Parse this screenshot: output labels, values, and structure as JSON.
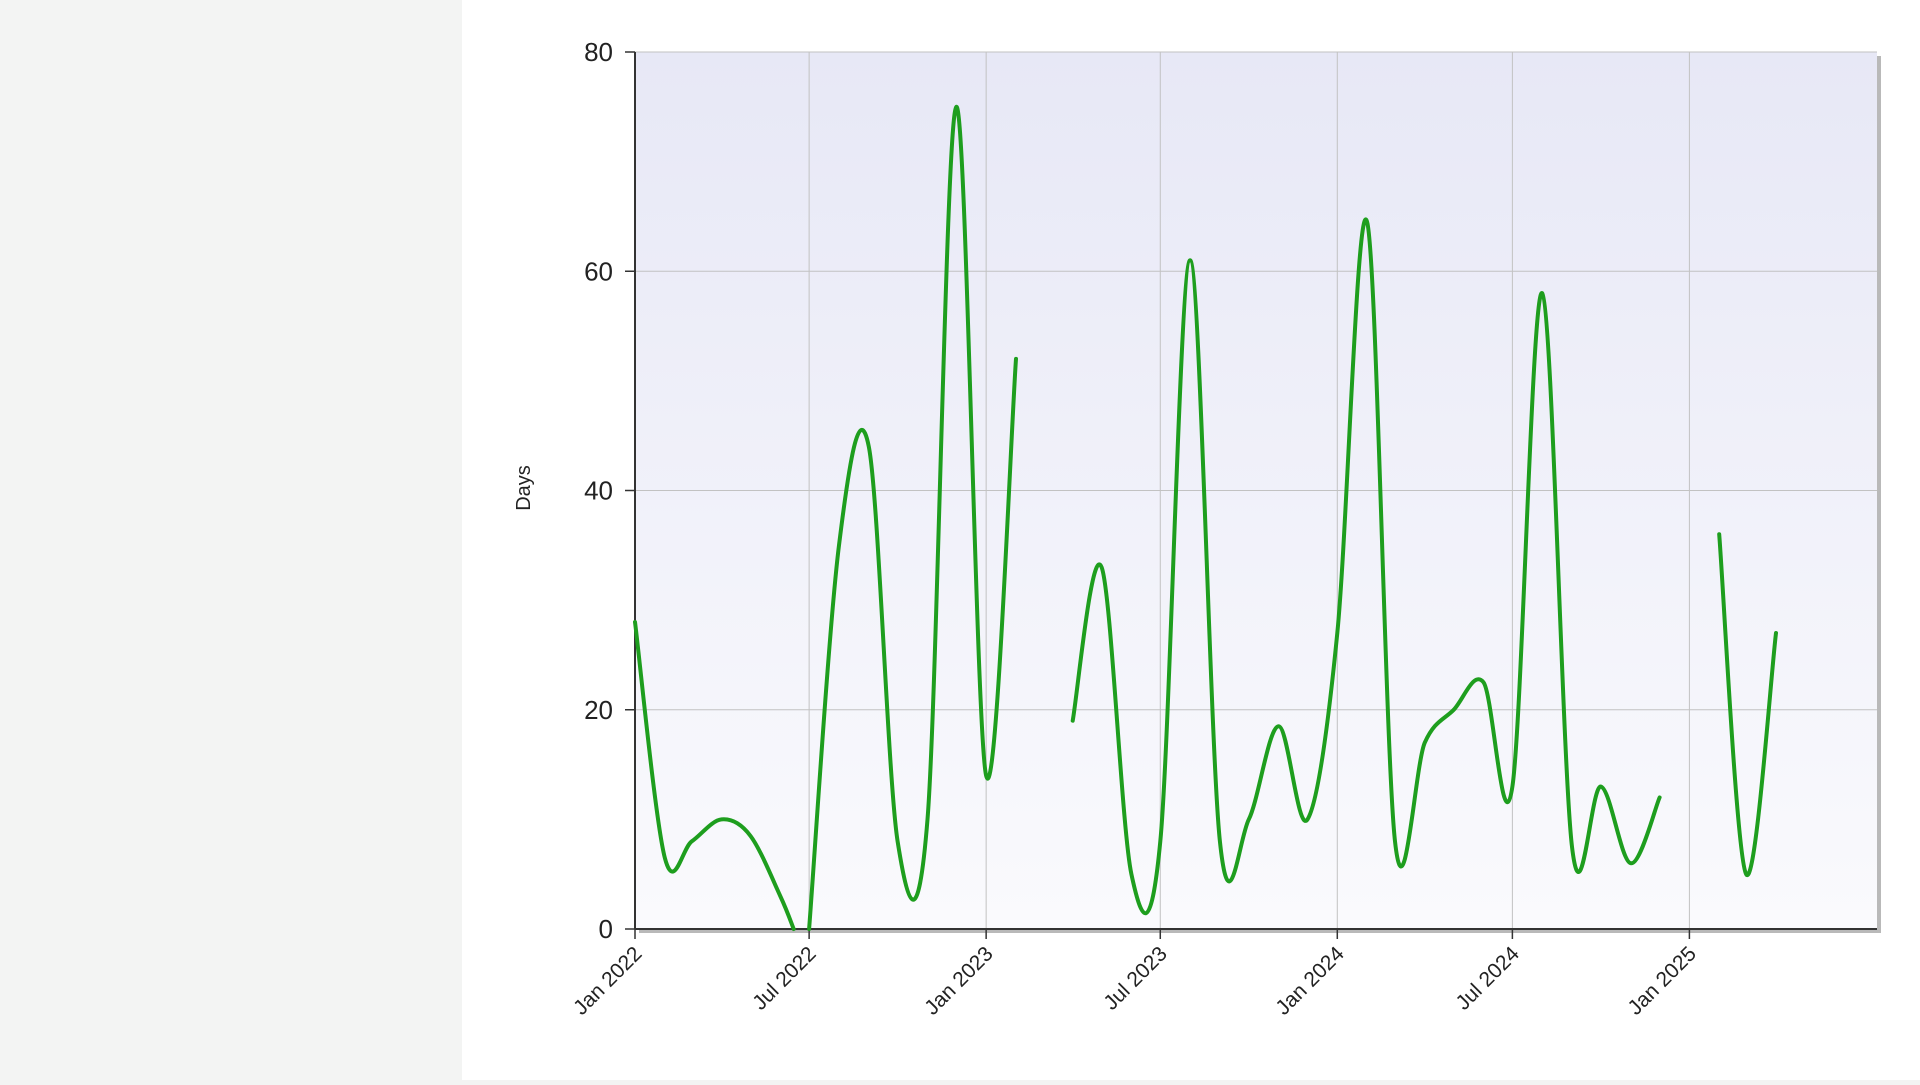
{
  "chart_data": {
    "type": "line",
    "title": "",
    "xlabel": "",
    "ylabel": "Days",
    "ylim": [
      0,
      80
    ],
    "yticks": [
      "0",
      "20",
      "40",
      "60",
      "80"
    ],
    "xlim": [
      "2022-01-01",
      "2025-07-15"
    ],
    "xticks": [
      {
        "date": "2022-01-01",
        "label": "Jan 2022"
      },
      {
        "date": "2022-07-01",
        "label": "Jul 2022"
      },
      {
        "date": "2023-01-01",
        "label": "Jan 2023"
      },
      {
        "date": "2023-07-01",
        "label": "Jul 2023"
      },
      {
        "date": "2024-01-01",
        "label": "Jan 2024"
      },
      {
        "date": "2024-07-01",
        "label": "Jul 2024"
      },
      {
        "date": "2025-01-01",
        "label": "Jan 2025"
      }
    ],
    "grid": true,
    "series_color": "#1e9e1e",
    "series": [
      {
        "segments": [
          [
            {
              "x": "2022-01-01",
              "y": 28
            },
            {
              "x": "2022-02-01",
              "y": 6.5
            },
            {
              "x": "2022-03-01",
              "y": 8
            },
            {
              "x": "2022-04-01",
              "y": 10
            },
            {
              "x": "2022-05-01",
              "y": 8.5
            },
            {
              "x": "2022-06-01",
              "y": 3
            },
            {
              "x": "2022-06-15",
              "y": 0
            }
          ],
          [
            {
              "x": "2022-07-01",
              "y": 0
            },
            {
              "x": "2022-08-01",
              "y": 35
            },
            {
              "x": "2022-09-01",
              "y": 44
            },
            {
              "x": "2022-10-01",
              "y": 8
            },
            {
              "x": "2022-11-01",
              "y": 10
            },
            {
              "x": "2022-12-01",
              "y": 75
            },
            {
              "x": "2023-01-01",
              "y": 14
            },
            {
              "x": "2023-02-01",
              "y": 52
            }
          ],
          [
            {
              "x": "2023-04-01",
              "y": 19
            },
            {
              "x": "2023-05-01",
              "y": 33
            },
            {
              "x": "2023-06-01",
              "y": 5
            },
            {
              "x": "2023-07-01",
              "y": 8
            },
            {
              "x": "2023-08-01",
              "y": 61
            },
            {
              "x": "2023-09-01",
              "y": 8
            },
            {
              "x": "2023-10-01",
              "y": 10
            },
            {
              "x": "2023-11-01",
              "y": 18.5
            },
            {
              "x": "2023-12-01",
              "y": 10
            },
            {
              "x": "2024-01-01",
              "y": 27
            },
            {
              "x": "2024-02-01",
              "y": 64.5
            },
            {
              "x": "2024-03-01",
              "y": 8
            },
            {
              "x": "2024-04-01",
              "y": 17
            },
            {
              "x": "2024-05-01",
              "y": 20
            },
            {
              "x": "2024-06-01",
              "y": 22.5
            },
            {
              "x": "2024-07-01",
              "y": 13
            },
            {
              "x": "2024-08-01",
              "y": 58
            },
            {
              "x": "2024-09-01",
              "y": 7.5
            },
            {
              "x": "2024-10-01",
              "y": 13
            },
            {
              "x": "2024-11-01",
              "y": 6
            },
            {
              "x": "2024-12-01",
              "y": 12
            }
          ],
          [
            {
              "x": "2025-02-01",
              "y": 36
            },
            {
              "x": "2025-03-01",
              "y": 5
            },
            {
              "x": "2025-04-01",
              "y": 27
            }
          ]
        ]
      }
    ]
  }
}
